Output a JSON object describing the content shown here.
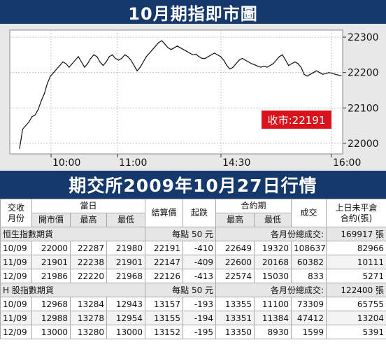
{
  "header": {
    "title": "10月期指即市圖"
  },
  "chart_data": {
    "type": "line",
    "title": "10月期指即市圖",
    "x_ticks": [
      "10:00",
      "11:00",
      "14:30",
      "16:00"
    ],
    "y_ticks": [
      22000,
      22100,
      22200,
      22300
    ],
    "ylim": [
      21970,
      22320
    ],
    "grid": true,
    "series": [
      {
        "values": [
          21985,
          22040,
          22050,
          22060,
          22075,
          22080,
          22095,
          22120,
          22140,
          22170,
          22190,
          22200,
          22210,
          22220,
          22230,
          22225,
          22215,
          22225,
          22235,
          22245,
          22230,
          22215,
          22225,
          22240,
          22250,
          22245,
          22230,
          22220,
          22230,
          22245,
          22250,
          22240,
          22235,
          22240,
          22250,
          22245,
          22235,
          22220,
          22205,
          22215,
          22230,
          22245,
          22255,
          22265,
          22275,
          22285,
          22290,
          22280,
          22270,
          22265,
          22270,
          22275,
          22270,
          22265,
          22260,
          22255,
          22250,
          22252,
          22245,
          22240,
          22240,
          22245,
          22250,
          22255,
          22250,
          22245,
          22235,
          22220,
          22210,
          22215,
          22225,
          22235,
          22240,
          22235,
          22230,
          22225,
          22222,
          22218,
          22215,
          22218,
          22215,
          22220,
          22225,
          22235,
          22245,
          22250,
          22235,
          22220,
          22225,
          22230,
          22225,
          22215,
          22195,
          22190,
          22195,
          22200,
          22205,
          22200,
          22195,
          22197,
          22200,
          22198,
          22195,
          22193,
          22191
        ]
      }
    ],
    "last_label": "收市:22191",
    "colors": {
      "line": "#111111",
      "grid": "#b8b8b8",
      "plot_bg": "#ffffff",
      "panel_bg": "#e8e8e8",
      "label_bg": "#d9121b",
      "label_text": "#ffffff"
    }
  },
  "table": {
    "title": "期交所2009年10月27日行情",
    "headers": {
      "contract_month": "交收\n月份",
      "day": "當日",
      "settle": "結算價",
      "change": "起跌",
      "contract_period": "合約期",
      "volume": "成交",
      "open_interest": "上日未平倉\n合約(張)",
      "open": "開市價",
      "high": "最高",
      "low": "最低",
      "period_high": "最高",
      "period_low": "最低"
    },
    "groups": [
      {
        "name": "恒生指數期貨",
        "point_value": "每點 50 元",
        "total_label": "各月份總成交:",
        "total": "169917 張",
        "rows": [
          {
            "month": "10/09",
            "open": "22000",
            "high": "22287",
            "low": "21980",
            "settle": "22191",
            "change": "-410",
            "period_high": "22649",
            "period_low": "19320",
            "volume": "108637",
            "oi": "82966"
          },
          {
            "month": "11/09",
            "open": "21901",
            "high": "22238",
            "low": "21901",
            "settle": "22147",
            "change": "-409",
            "period_high": "22600",
            "period_low": "20168",
            "volume": "60382",
            "oi": "10111"
          },
          {
            "month": "12/09",
            "open": "21986",
            "high": "22220",
            "low": "21968",
            "settle": "22126",
            "change": "-413",
            "period_high": "22574",
            "period_low": "15030",
            "volume": "833",
            "oi": "5271"
          }
        ]
      },
      {
        "name": "H 股指數期貨",
        "point_value": "每點 50 元",
        "total_label": "各月份總成交:",
        "total": "122400 張",
        "rows": [
          {
            "month": "10/09",
            "open": "12968",
            "high": "13284",
            "low": "12943",
            "settle": "13157",
            "change": "-193",
            "period_high": "13355",
            "period_low": "11100",
            "volume": "73309",
            "oi": "65755"
          },
          {
            "month": "11/09",
            "open": "12988",
            "high": "13278",
            "low": "12954",
            "settle": "13155",
            "change": "-194",
            "period_high": "13351",
            "period_low": "11384",
            "volume": "47412",
            "oi": "13204"
          },
          {
            "month": "12/09",
            "open": "13000",
            "high": "13280",
            "low": "13000",
            "settle": "13152",
            "change": "-195",
            "period_high": "13350",
            "period_low": "8930",
            "volume": "1599",
            "oi": "5391"
          }
        ]
      }
    ]
  }
}
